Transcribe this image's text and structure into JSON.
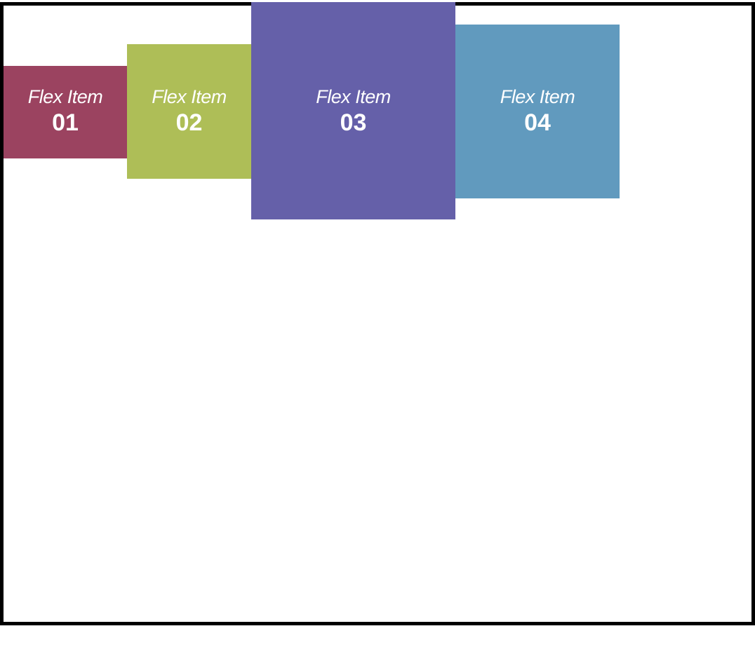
{
  "flex_items": [
    {
      "label": "Flex Item",
      "number": "01",
      "color": "#9B4360"
    },
    {
      "label": "Flex Item",
      "number": "02",
      "color": "#AEBE57"
    },
    {
      "label": "Flex Item",
      "number": "03",
      "color": "#6560A9"
    },
    {
      "label": "Flex Item",
      "number": "04",
      "color": "#619ABE"
    }
  ],
  "colors": {
    "container_border": "#000000",
    "container_background": "#ffffff",
    "text": "#ffffff"
  }
}
